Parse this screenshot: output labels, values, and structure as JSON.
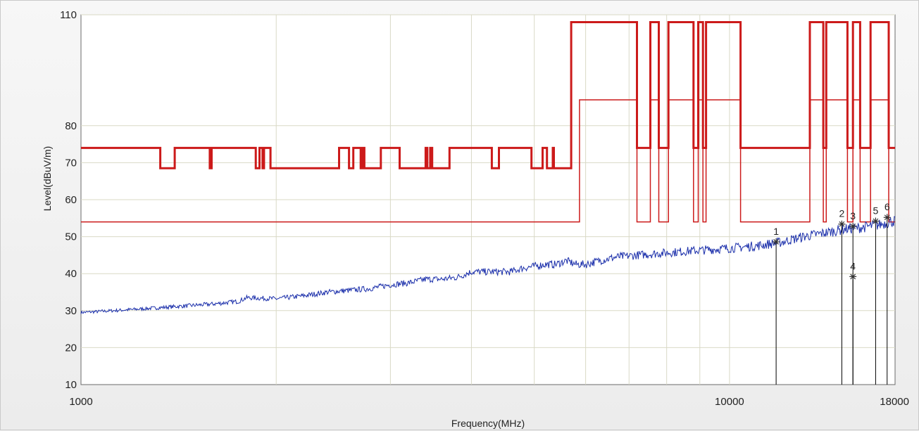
{
  "chart_data": {
    "type": "line",
    "title": "",
    "xlabel": "Frequency(MHz)",
    "ylabel": "Level(dBuV/m)",
    "x_scale": "log",
    "xlim": [
      1000,
      18000
    ],
    "ylim": [
      10,
      110
    ],
    "grid": true,
    "x_ticks": [
      {
        "value": 1000,
        "label": "1000"
      },
      {
        "value": 10000,
        "label": "10000"
      },
      {
        "value": 18000,
        "label": "18000"
      }
    ],
    "x_gridlines": [
      2000,
      3000,
      4000,
      5000,
      6000,
      7000,
      8000,
      9000,
      10000
    ],
    "y_ticks": [
      {
        "value": 10,
        "label": "10"
      },
      {
        "value": 20,
        "label": "20"
      },
      {
        "value": 30,
        "label": "30"
      },
      {
        "value": 40,
        "label": "40"
      },
      {
        "value": 50,
        "label": "50"
      },
      {
        "value": 60,
        "label": "60"
      },
      {
        "value": 70,
        "label": "70"
      },
      {
        "value": 80,
        "label": "80"
      },
      {
        "value": 110,
        "label": "110"
      }
    ],
    "y_gridlines": [
      20,
      30,
      40,
      50,
      60,
      70,
      80,
      110
    ],
    "series": [
      {
        "color": "#cc1a1a",
        "style": "thick",
        "points": [
          [
            1000,
            74
          ],
          [
            1325,
            74
          ],
          [
            1325,
            68.5
          ],
          [
            1395,
            68.5
          ],
          [
            1395,
            74
          ],
          [
            1580,
            74
          ],
          [
            1580,
            68.5
          ],
          [
            1590,
            68.5
          ],
          [
            1590,
            74
          ],
          [
            1860,
            74
          ],
          [
            1860,
            68.5
          ],
          [
            1885,
            68.5
          ],
          [
            1885,
            74
          ],
          [
            1905,
            74
          ],
          [
            1905,
            68.5
          ],
          [
            1915,
            68.5
          ],
          [
            1915,
            74
          ],
          [
            1960,
            74
          ],
          [
            1960,
            68.5
          ],
          [
            2500,
            68.5
          ],
          [
            2500,
            74
          ],
          [
            2590,
            74
          ],
          [
            2590,
            68.5
          ],
          [
            2630,
            68.5
          ],
          [
            2630,
            74
          ],
          [
            2700,
            74
          ],
          [
            2700,
            68.5
          ],
          [
            2720,
            68.5
          ],
          [
            2720,
            74
          ],
          [
            2735,
            74
          ],
          [
            2735,
            68.5
          ],
          [
            2900,
            68.5
          ],
          [
            2900,
            74
          ],
          [
            3100,
            74
          ],
          [
            3100,
            68.5
          ],
          [
            3400,
            68.5
          ],
          [
            3400,
            74
          ],
          [
            3420,
            74
          ],
          [
            3420,
            68.5
          ],
          [
            3455,
            68.5
          ],
          [
            3455,
            74
          ],
          [
            3480,
            74
          ],
          [
            3480,
            68.5
          ],
          [
            3700,
            68.5
          ],
          [
            3700,
            74
          ],
          [
            4300,
            74
          ],
          [
            4300,
            68.5
          ],
          [
            4410,
            68.5
          ],
          [
            4410,
            74
          ],
          [
            4950,
            74
          ],
          [
            4950,
            68.5
          ],
          [
            5150,
            68.5
          ],
          [
            5150,
            74
          ],
          [
            5230,
            74
          ],
          [
            5230,
            68.5
          ],
          [
            5340,
            68.5
          ],
          [
            5340,
            74
          ],
          [
            5360,
            74
          ],
          [
            5360,
            68.5
          ],
          [
            5700,
            68.5
          ],
          [
            5700,
            108
          ],
          [
            7200,
            108
          ],
          [
            7200,
            74
          ],
          [
            7550,
            74
          ],
          [
            7550,
            108
          ],
          [
            7780,
            108
          ],
          [
            7780,
            74
          ],
          [
            8050,
            74
          ],
          [
            8050,
            108
          ],
          [
            8800,
            108
          ],
          [
            8800,
            74
          ],
          [
            8950,
            74
          ],
          [
            8950,
            108
          ],
          [
            9100,
            108
          ],
          [
            9100,
            74
          ],
          [
            9200,
            74
          ],
          [
            9200,
            108
          ],
          [
            10400,
            108
          ],
          [
            10400,
            74
          ],
          [
            13300,
            74
          ],
          [
            13300,
            108
          ],
          [
            13950,
            108
          ],
          [
            13950,
            74
          ],
          [
            14100,
            74
          ],
          [
            14100,
            108
          ],
          [
            15200,
            108
          ],
          [
            15200,
            74
          ],
          [
            15500,
            74
          ],
          [
            15500,
            108
          ],
          [
            15900,
            108
          ],
          [
            15900,
            74
          ],
          [
            16500,
            74
          ],
          [
            16500,
            108
          ],
          [
            17600,
            108
          ],
          [
            17600,
            74
          ],
          [
            18000,
            74
          ]
        ]
      },
      {
        "color": "#cc1a1a",
        "style": "thin",
        "points": [
          [
            1000,
            54
          ],
          [
            5870,
            54
          ],
          [
            5870,
            87
          ],
          [
            7200,
            87
          ],
          [
            7200,
            54
          ],
          [
            7550,
            54
          ],
          [
            7550,
            87
          ],
          [
            7780,
            87
          ],
          [
            7780,
            54
          ],
          [
            8050,
            54
          ],
          [
            8050,
            87
          ],
          [
            8800,
            87
          ],
          [
            8800,
            54
          ],
          [
            8950,
            54
          ],
          [
            8950,
            87
          ],
          [
            9100,
            87
          ],
          [
            9100,
            54
          ],
          [
            9200,
            54
          ],
          [
            9200,
            87
          ],
          [
            10400,
            87
          ],
          [
            10400,
            54
          ],
          [
            13300,
            54
          ],
          [
            13300,
            87
          ],
          [
            13950,
            87
          ],
          [
            13950,
            54
          ],
          [
            14100,
            54
          ],
          [
            14100,
            87
          ],
          [
            15200,
            87
          ],
          [
            15200,
            54
          ],
          [
            15500,
            54
          ],
          [
            15500,
            87
          ],
          [
            15900,
            87
          ],
          [
            15900,
            54
          ],
          [
            16500,
            54
          ],
          [
            16500,
            87
          ],
          [
            17600,
            87
          ],
          [
            17600,
            54
          ],
          [
            18000,
            54
          ]
        ]
      },
      {
        "color": "#1a2eaa",
        "style": "trace",
        "points": [
          [
            1000,
            29.5
          ],
          [
            1200,
            30.3
          ],
          [
            1400,
            31.1
          ],
          [
            1600,
            31.8
          ],
          [
            1750,
            32.5
          ],
          [
            1800,
            33.5
          ],
          [
            2000,
            33.2
          ],
          [
            2200,
            34
          ],
          [
            2400,
            35
          ],
          [
            2600,
            35.5
          ],
          [
            2800,
            36
          ],
          [
            3000,
            37
          ],
          [
            3200,
            37.5
          ],
          [
            3400,
            38.5
          ],
          [
            3600,
            38.5
          ],
          [
            3800,
            39
          ],
          [
            4000,
            40.5
          ],
          [
            4300,
            40.5
          ],
          [
            4600,
            40.5
          ],
          [
            4800,
            41.5
          ],
          [
            5000,
            42
          ],
          [
            5200,
            42.5
          ],
          [
            5400,
            42.5
          ],
          [
            5600,
            43.5
          ],
          [
            5800,
            42.5
          ],
          [
            6000,
            42.5
          ],
          [
            6300,
            43.5
          ],
          [
            6700,
            44.5
          ],
          [
            7200,
            45
          ],
          [
            7800,
            45.5
          ],
          [
            8500,
            46
          ],
          [
            9300,
            46.5
          ],
          [
            10200,
            47
          ],
          [
            11000,
            47.5
          ],
          [
            12000,
            48.5
          ],
          [
            13000,
            50
          ],
          [
            14000,
            51
          ],
          [
            15000,
            52
          ],
          [
            16000,
            52.5
          ],
          [
            17000,
            53.2
          ],
          [
            18000,
            54.3
          ]
        ]
      }
    ],
    "markers": [
      {
        "id": "1",
        "label": "1",
        "x": 11800,
        "y": 48.6
      },
      {
        "id": "2",
        "label": "2",
        "x": 14900,
        "y": 53.4
      },
      {
        "id": "3",
        "label": "3",
        "x": 15500,
        "y": 52.8
      },
      {
        "id": "4",
        "label": "4",
        "x": 15500,
        "y": 39.2
      },
      {
        "id": "5",
        "label": "5",
        "x": 16800,
        "y": 54.2
      },
      {
        "id": "6",
        "label": "6",
        "x": 17500,
        "y": 55.2
      }
    ]
  }
}
